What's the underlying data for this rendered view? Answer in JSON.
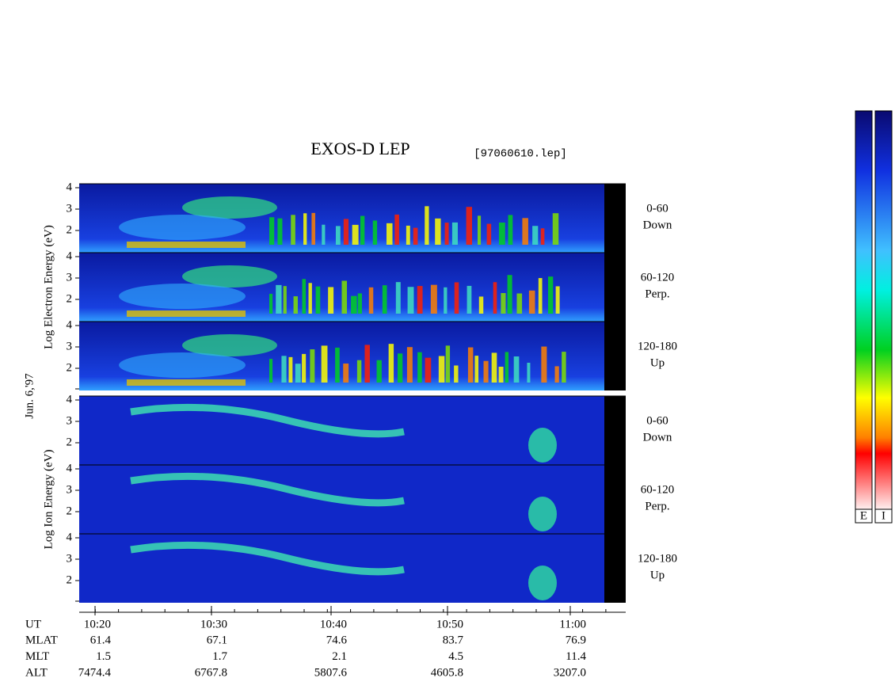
{
  "header": {
    "title": "EXOS-D LEP",
    "file": "[97060610.lep]"
  },
  "date": "Jun. 6,'97",
  "groups": [
    {
      "axis_label": "Log  Electron  Energy (eV)",
      "panels": [
        {
          "yticks": [
            "4",
            "3",
            "2"
          ],
          "angle": "0-60",
          "direction": "Down"
        },
        {
          "yticks": [
            "4",
            "3",
            "2"
          ],
          "angle": "60-120",
          "direction": "Perp."
        },
        {
          "yticks": [
            "4",
            "3",
            "2"
          ],
          "angle": "120-180",
          "direction": "Up"
        }
      ]
    },
    {
      "axis_label": "Log  Ion  Energy (eV)",
      "panels": [
        {
          "yticks": [
            "4",
            "3",
            "2"
          ],
          "angle": "0-60",
          "direction": "Down"
        },
        {
          "yticks": [
            "4",
            "3",
            "2"
          ],
          "angle": "60-120",
          "direction": "Perp."
        },
        {
          "yticks": [
            "4",
            "3",
            "2"
          ],
          "angle": "120-180",
          "direction": "Up"
        }
      ]
    }
  ],
  "rows": [
    {
      "label": "UT",
      "values": [
        "10:20",
        "10:30",
        "10:40",
        "10:50",
        "11:00"
      ]
    },
    {
      "label": "MLAT",
      "values": [
        "61.4",
        "67.1",
        "74.6",
        "83.7",
        "76.9"
      ]
    },
    {
      "label": "MLT",
      "values": [
        "1.5",
        "1.7",
        "2.1",
        "4.5",
        "11.4"
      ]
    },
    {
      "label": "ALT",
      "values": [
        "7474.4",
        "6767.8",
        "5807.6",
        "4605.8",
        "3207.0"
      ]
    }
  ],
  "colorbar": {
    "labels": [
      "E",
      "I"
    ]
  }
}
